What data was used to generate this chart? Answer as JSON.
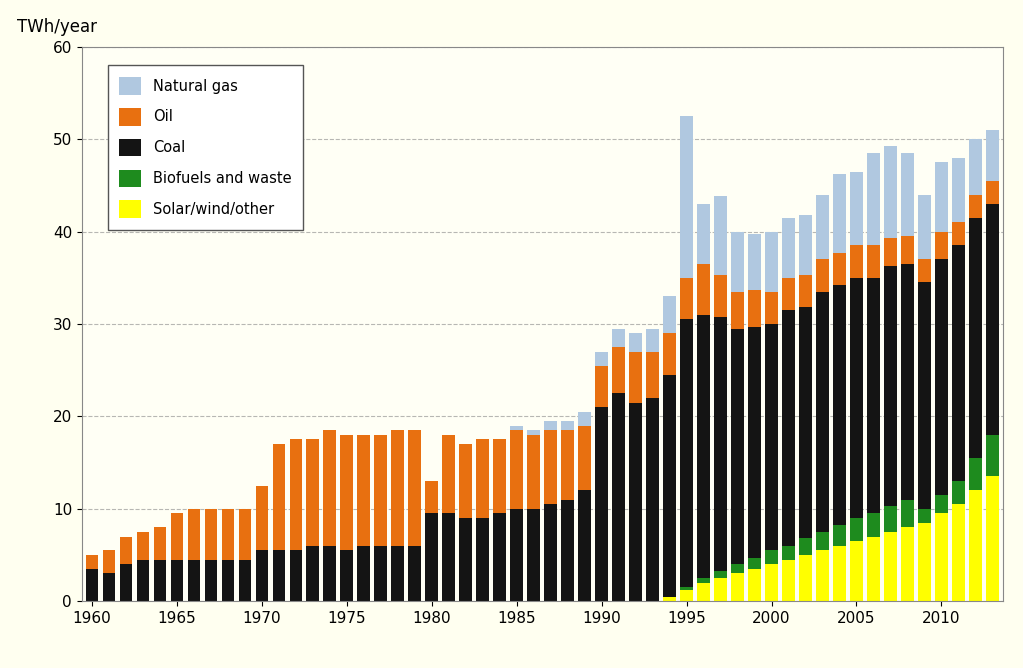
{
  "years": [
    1960,
    1961,
    1962,
    1963,
    1964,
    1965,
    1966,
    1967,
    1968,
    1969,
    1970,
    1971,
    1972,
    1973,
    1974,
    1975,
    1976,
    1977,
    1978,
    1979,
    1980,
    1981,
    1982,
    1983,
    1984,
    1985,
    1986,
    1987,
    1988,
    1989,
    1990,
    1991,
    1992,
    1993,
    1994,
    1995,
    1996,
    1997,
    1998,
    1999,
    2000,
    2001,
    2002,
    2003,
    2004,
    2005,
    2006,
    2007,
    2008,
    2009,
    2010,
    2011,
    2012,
    2013
  ],
  "solar_wind_other": [
    0,
    0,
    0,
    0,
    0,
    0,
    0,
    0,
    0,
    0,
    0,
    0,
    0,
    0,
    0,
    0,
    0,
    0,
    0,
    0,
    0,
    0,
    0,
    0,
    0,
    0,
    0,
    0,
    0,
    0,
    0,
    0,
    0,
    0,
    0.5,
    1.2,
    2.0,
    2.5,
    3.0,
    3.5,
    4.0,
    4.5,
    5.0,
    5.5,
    6.0,
    6.5,
    7.0,
    7.5,
    8.0,
    8.5,
    9.5,
    10.5,
    12.0,
    13.5
  ],
  "biofuels_waste": [
    0,
    0,
    0,
    0,
    0,
    0,
    0,
    0,
    0,
    0,
    0,
    0,
    0,
    0,
    0,
    0,
    0,
    0,
    0,
    0,
    0,
    0,
    0,
    0,
    0,
    0,
    0,
    0,
    0,
    0,
    0,
    0,
    0,
    0,
    0,
    0.3,
    0.5,
    0.8,
    1.0,
    1.2,
    1.5,
    1.5,
    1.8,
    2.0,
    2.2,
    2.5,
    2.5,
    2.8,
    3.0,
    1.5,
    2.0,
    2.5,
    3.5,
    4.5
  ],
  "coal": [
    3.5,
    3.0,
    4.0,
    4.5,
    4.5,
    4.5,
    4.5,
    4.5,
    4.5,
    4.5,
    5.5,
    5.5,
    5.5,
    6.0,
    6.0,
    5.5,
    6.0,
    6.0,
    6.0,
    6.0,
    9.5,
    9.5,
    9.0,
    9.0,
    9.5,
    10.0,
    10.0,
    10.5,
    11.0,
    12.0,
    21.0,
    22.5,
    21.5,
    22.0,
    24.0,
    29.0,
    28.5,
    27.5,
    25.5,
    25.0,
    24.5,
    25.5,
    25.0,
    26.0,
    26.0,
    26.0,
    25.5,
    26.0,
    25.5,
    24.5,
    25.5,
    25.5,
    26.0,
    25.0
  ],
  "oil": [
    1.5,
    2.5,
    3.0,
    3.0,
    3.5,
    5.0,
    5.5,
    5.5,
    5.5,
    5.5,
    7.0,
    11.5,
    12.0,
    11.5,
    12.5,
    12.5,
    12.0,
    12.0,
    12.5,
    12.5,
    3.5,
    8.5,
    8.0,
    8.5,
    8.0,
    8.5,
    8.0,
    8.0,
    7.5,
    7.0,
    4.5,
    5.0,
    5.5,
    5.0,
    4.5,
    4.5,
    5.5,
    4.5,
    4.0,
    4.0,
    3.5,
    3.5,
    3.5,
    3.5,
    3.5,
    3.5,
    3.5,
    3.0,
    3.0,
    2.5,
    3.0,
    2.5,
    2.5,
    2.5
  ],
  "natural_gas": [
    0,
    0,
    0,
    0,
    0,
    0,
    0,
    0,
    0,
    0,
    0,
    0,
    0,
    0,
    0,
    0,
    0,
    0,
    0,
    0,
    0,
    0,
    0,
    0,
    0,
    0.5,
    0.5,
    1.0,
    1.0,
    1.5,
    1.5,
    2.0,
    2.0,
    2.5,
    4.0,
    17.5,
    6.5,
    8.5,
    6.5,
    6.0,
    6.5,
    6.5,
    6.5,
    7.0,
    8.5,
    8.0,
    10.0,
    10.0,
    9.0,
    7.0,
    7.5,
    7.0,
    6.0,
    5.5
  ],
  "colors": {
    "solar_wind_other": "#FFFF00",
    "biofuels_waste": "#1E8B1E",
    "coal": "#141414",
    "oil": "#E87010",
    "natural_gas": "#B0C8E0"
  },
  "legend_labels": [
    "Natural gas",
    "Oil",
    "Coal",
    "Biofuels and waste",
    "Solar/wind/other"
  ],
  "title_label": "TWh/year",
  "ylim": [
    0,
    60
  ],
  "yticks": [
    0,
    10,
    20,
    30,
    40,
    50,
    60
  ],
  "background_color": "#FFFFF0",
  "plot_bg_color": "#FFFFF5",
  "grid_color": "#888888"
}
